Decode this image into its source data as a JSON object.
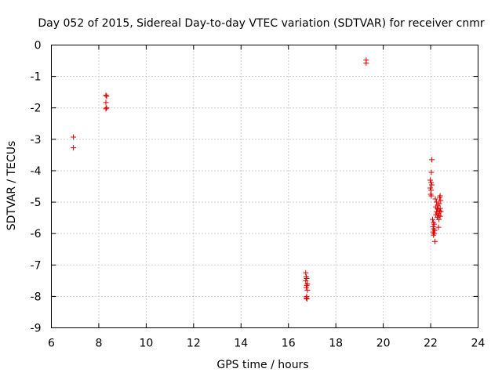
{
  "chart_data": {
    "type": "scatter",
    "title": "Day 052 of 2015, Sidereal Day-to-day VTEC variation (SDTVAR) for receiver cnmr",
    "xlabel": "GPS time / hours",
    "ylabel": "SDTVAR / TECUs",
    "xlim": [
      6,
      24
    ],
    "ylim": [
      -9,
      0
    ],
    "xticks": [
      6,
      8,
      10,
      12,
      14,
      16,
      18,
      20,
      22,
      24
    ],
    "yticks": [
      0,
      -1,
      -2,
      -3,
      -4,
      -5,
      -6,
      -7,
      -8,
      -9
    ],
    "grid": true,
    "marker": "+",
    "color": "#dd0000",
    "series": [
      {
        "name": "SDTVAR",
        "x": [
          6.93,
          6.93,
          8.3,
          8.33,
          8.3,
          8.33,
          8.3,
          16.73,
          16.75,
          16.77,
          16.73,
          16.8,
          16.77,
          16.75,
          16.8,
          16.77,
          16.75,
          16.78,
          19.28,
          19.28,
          22.05,
          22.03,
          21.98,
          22.02,
          22.05,
          21.98,
          22.02,
          22.0,
          22.03,
          22.08,
          22.12,
          22.15,
          22.1,
          22.13,
          22.17,
          22.1,
          22.15,
          22.12,
          22.18,
          22.2,
          22.25,
          22.3,
          22.22,
          22.28,
          22.32,
          22.25,
          22.3,
          22.22,
          22.28,
          22.35,
          22.33,
          22.4,
          22.38,
          22.42,
          22.36,
          22.4,
          22.38,
          22.43,
          22.35,
          22.4
        ],
        "y": [
          -2.93,
          -3.27,
          -1.6,
          -1.63,
          -1.83,
          -2.0,
          -2.03,
          -7.25,
          -7.38,
          -7.43,
          -7.5,
          -7.6,
          -7.65,
          -7.72,
          -7.8,
          -8.0,
          -8.05,
          -8.08,
          -0.48,
          -0.57,
          -3.65,
          -4.05,
          -4.3,
          -4.38,
          -4.45,
          -4.55,
          -4.62,
          -4.75,
          -4.8,
          -5.55,
          -5.65,
          -5.7,
          -5.78,
          -5.85,
          -5.9,
          -5.95,
          -6.0,
          -6.05,
          -6.25,
          -4.9,
          -5.0,
          -5.1,
          -5.15,
          -5.2,
          -5.22,
          -5.3,
          -5.35,
          -5.4,
          -5.48,
          -5.55,
          -5.8,
          -4.8,
          -4.85,
          -4.95,
          -5.05,
          -5.2,
          -5.28,
          -5.3,
          -5.42,
          -5.45
        ]
      }
    ]
  }
}
